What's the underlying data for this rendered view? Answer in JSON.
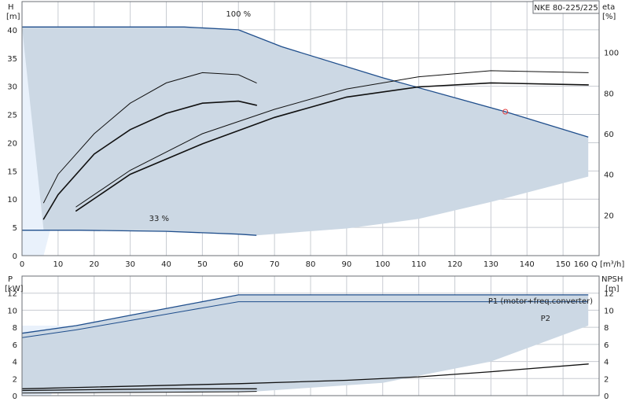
{
  "chart_data": [
    {
      "type": "line",
      "title": "NKE 80-225/225",
      "xlabel": "Q [m³/h]",
      "ylabel": "H",
      "ylabel_unit": "[m]",
      "y2label": "eta",
      "y2label_unit": "[%]",
      "xlim": [
        0,
        160
      ],
      "ylim": [
        0,
        45
      ],
      "y2lim": [
        0,
        100
      ],
      "xticks": [
        0,
        10,
        20,
        30,
        40,
        50,
        60,
        70,
        80,
        90,
        100,
        110,
        120,
        130,
        140,
        150,
        160
      ],
      "yticks": [
        0,
        5,
        10,
        15,
        20,
        25,
        30,
        35,
        40
      ],
      "y2ticks": [
        20,
        40,
        60,
        80,
        100
      ],
      "grid": true,
      "annotations": [
        {
          "text": "100 %",
          "x": 60,
          "y": 41.5
        },
        {
          "text": "33 %",
          "x": 38,
          "y": 5.3
        }
      ],
      "operating_point": {
        "x": 134,
        "y": 25.5
      },
      "series": [
        {
          "role": "envelope-100",
          "x": [
            0,
            16,
            45,
            60,
            72,
            100,
            134,
            157
          ],
          "y": [
            40.5,
            40.5,
            40.5,
            40.0,
            37.0,
            31.5,
            25.5,
            21.0
          ]
        },
        {
          "role": "envelope-33",
          "x": [
            0,
            16,
            40,
            60,
            65
          ],
          "y": [
            4.5,
            4.5,
            4.3,
            3.8,
            3.6
          ]
        },
        {
          "role": "envelope-lower",
          "x": [
            65,
            90,
            110,
            130,
            157
          ],
          "y": [
            3.6,
            4.8,
            6.5,
            9.5,
            14.0
          ]
        },
        {
          "role": "left-limit",
          "x": [
            0,
            6,
            10,
            14,
            16
          ],
          "y": [
            0,
            0,
            10,
            30,
            40.5
          ]
        },
        {
          "role": "eta-upper-a",
          "x": [
            6,
            10,
            20,
            30,
            40,
            50,
            60,
            65
          ],
          "y": [
            26,
            40,
            60,
            75,
            85,
            90,
            89,
            85
          ]
        },
        {
          "role": "eta-lower-a",
          "x": [
            6,
            10,
            20,
            30,
            40,
            50,
            60,
            65
          ],
          "y": [
            18,
            30,
            50,
            62,
            70,
            75,
            76,
            74
          ]
        },
        {
          "role": "eta-upper-b",
          "x": [
            15,
            30,
            50,
            70,
            90,
            110,
            130,
            157
          ],
          "y": [
            24,
            42,
            60,
            72,
            82,
            88,
            91,
            90
          ]
        },
        {
          "role": "eta-lower-b",
          "x": [
            15,
            30,
            50,
            70,
            90,
            110,
            130,
            157
          ],
          "y": [
            22,
            40,
            55,
            68,
            78,
            83,
            85,
            84
          ]
        }
      ]
    },
    {
      "type": "line",
      "title": "",
      "xlabel": "",
      "ylabel": "P",
      "ylabel_unit": "[kW]",
      "y2label": "NPSH",
      "y2label_unit": "[m]",
      "xlim": [
        0,
        160
      ],
      "ylim": [
        0,
        14
      ],
      "y2lim": [
        0,
        14
      ],
      "yticks": [
        0,
        2,
        4,
        6,
        8,
        10,
        12
      ],
      "y2ticks": [
        0,
        2,
        4,
        6,
        8,
        10,
        12
      ],
      "grid": true,
      "legend_labels": [
        "P1 (motor+freq.converter)",
        "P2"
      ],
      "series": [
        {
          "name": "P1 (motor+freq.converter)",
          "x": [
            0,
            15,
            30,
            45,
            60,
            157
          ],
          "y": [
            7.3,
            8.2,
            9.4,
            10.6,
            11.8,
            11.8
          ]
        },
        {
          "name": "P2",
          "x": [
            0,
            15,
            30,
            45,
            60,
            157
          ],
          "y": [
            6.8,
            7.7,
            8.8,
            9.9,
            11.0,
            11.0
          ]
        },
        {
          "role": "npsh",
          "x": [
            0,
            20,
            60,
            90,
            110,
            130,
            157
          ],
          "y": [
            0.8,
            1.0,
            1.4,
            1.8,
            2.2,
            2.8,
            3.7
          ]
        },
        {
          "role": "lower-a",
          "x": [
            0,
            20,
            40,
            60,
            65
          ],
          "y": [
            0.6,
            0.7,
            0.8,
            0.8,
            0.8
          ]
        },
        {
          "role": "lower-b",
          "x": [
            0,
            20,
            40,
            60,
            65
          ],
          "y": [
            0.3,
            0.35,
            0.4,
            0.45,
            0.5
          ]
        },
        {
          "role": "envelope-lower",
          "x": [
            65,
            100,
            130,
            157
          ],
          "y": [
            0.5,
            1.5,
            4.0,
            8.2
          ]
        },
        {
          "role": "left-limit",
          "x": [
            0,
            8,
            12,
            16
          ],
          "y": [
            0,
            0,
            4,
            8.2
          ]
        }
      ]
    }
  ]
}
